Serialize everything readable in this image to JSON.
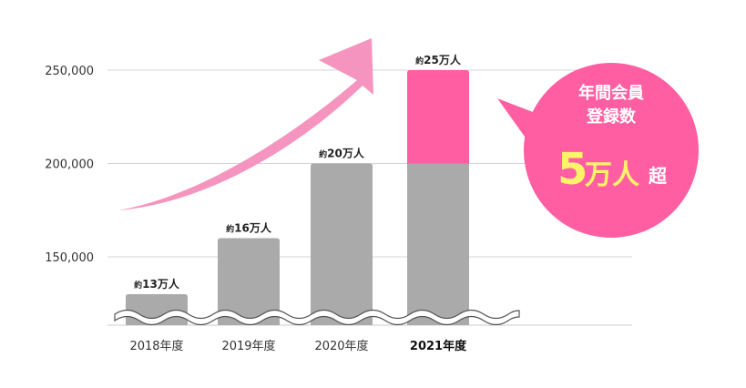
{
  "chart_data": {
    "type": "bar",
    "categories": [
      "2018年度",
      "2019年度",
      "2020年度",
      "2021年度"
    ],
    "values": [
      130000,
      160000,
      200000,
      250000
    ],
    "highlight_index": 3,
    "highlight_base": 200000,
    "y_ticks": [
      {
        "value": 150000,
        "label": "150,000"
      },
      {
        "value": 200000,
        "label": "200,000"
      },
      {
        "value": 250000,
        "label": "250,000"
      }
    ],
    "ylim": [
      110000,
      270000
    ],
    "axis_break": true,
    "grid": true,
    "data_labels": [
      {
        "prefix": "約",
        "text": "13万人"
      },
      {
        "prefix": "約",
        "text": "16万人"
      },
      {
        "prefix": "約",
        "text": "20万人"
      },
      {
        "prefix": "約",
        "text": "25万人"
      }
    ],
    "bar_color": "#aaaaaa",
    "highlight_color": "#ff5fa2",
    "arrow_color": "#f595bf"
  },
  "callout": {
    "line1": "年間会員",
    "line2": "登録数",
    "big": "5",
    "unit": "万人",
    "suffix": "超",
    "bubble_color": "#ff5fa2",
    "big_color": "#fff36a",
    "text_color": "#ffffff"
  }
}
